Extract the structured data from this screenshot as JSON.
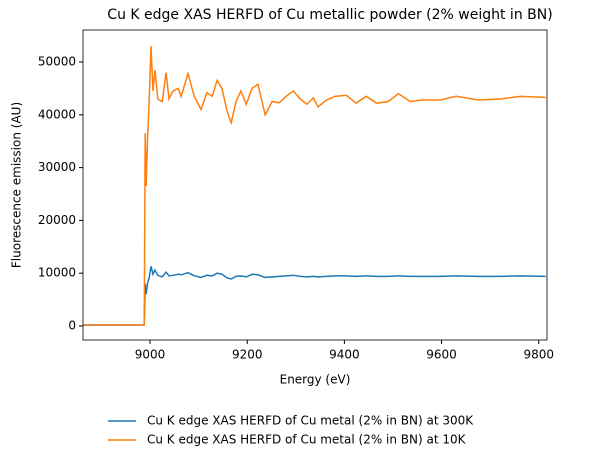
{
  "chart_data": {
    "type": "line",
    "title": "Cu K edge XAS HERFD of Cu metallic powder (2% weight in BN)",
    "x_label": "Energy (eV)",
    "y_label": "Fluorescence emission (AU)",
    "x": [
      8862,
      8988,
      8990,
      8992,
      8995,
      8998,
      9002,
      9006,
      9010,
      9016,
      9025,
      9033,
      9039,
      9047,
      9058,
      9064,
      9078,
      9091,
      9105,
      9117,
      9128,
      9138,
      9148,
      9159,
      9167,
      9177,
      9187,
      9198,
      9210,
      9222,
      9237,
      9251,
      9266,
      9280,
      9295,
      9309,
      9323,
      9336,
      9346,
      9363,
      9381,
      9404,
      9424,
      9445,
      9466,
      9490,
      9511,
      9536,
      9560,
      9597,
      9630,
      9676,
      9721,
      9762,
      9814
    ],
    "series": [
      {
        "name": "Cu K edge XAS HERFD of Cu metal (2% in BN) at 300K",
        "color": "#1f77b4",
        "values": [
          200,
          200,
          8000,
          6000,
          8200,
          9000,
          11300,
          9800,
          10600,
          9600,
          9300,
          10200,
          9500,
          9600,
          9800,
          9700,
          10100,
          9500,
          9200,
          9600,
          9500,
          10000,
          9800,
          9100,
          8900,
          9400,
          9500,
          9300,
          9800,
          9700,
          9200,
          9300,
          9400,
          9500,
          9600,
          9400,
          9300,
          9400,
          9300,
          9400,
          9500,
          9500,
          9400,
          9500,
          9400,
          9400,
          9500,
          9400,
          9400,
          9400,
          9500,
          9400,
          9400,
          9500,
          9400
        ]
      },
      {
        "name": "Cu K edge XAS HERFD of Cu metal (2% in BN) at 10K",
        "color": "#ff7f0e",
        "values": [
          200,
          200,
          36500,
          26500,
          36000,
          42000,
          53000,
          44500,
          48500,
          43000,
          42500,
          48000,
          43000,
          44500,
          45000,
          43500,
          47800,
          43500,
          41000,
          44200,
          43500,
          46500,
          45000,
          40500,
          38500,
          42500,
          44500,
          42000,
          45000,
          45800,
          40000,
          42500,
          42300,
          43500,
          44500,
          43000,
          42000,
          43200,
          41500,
          42800,
          43500,
          43700,
          42200,
          43500,
          42200,
          42500,
          44000,
          42500,
          42800,
          42800,
          43500,
          42800,
          43000,
          43500,
          43300
        ]
      }
    ],
    "xlim": [
      8862,
      9817
    ],
    "ylim": [
      -2650,
      56060
    ],
    "xticks": [
      9000,
      9200,
      9400,
      9600,
      9800
    ],
    "yticks": [
      0,
      10000,
      20000,
      30000,
      40000,
      50000
    ],
    "legend": "bottom"
  }
}
